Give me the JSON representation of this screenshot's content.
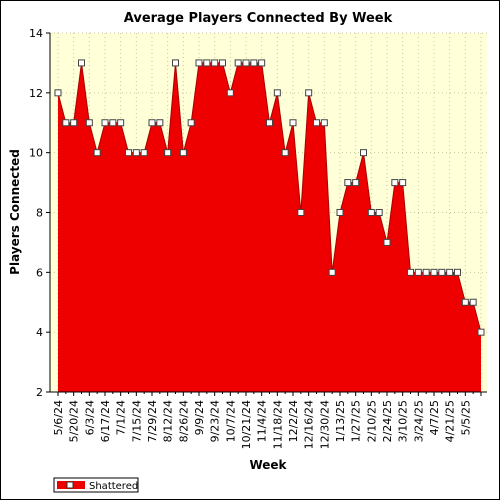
{
  "chart_data": {
    "type": "area",
    "title": "Average Players Connected By Week",
    "xlabel": "Week",
    "ylabel": "Players Connected",
    "ylim": [
      2,
      14
    ],
    "yticks": [
      2,
      4,
      6,
      8,
      10,
      12,
      14
    ],
    "grid": true,
    "legend_position": "bottom-left",
    "x_tick_labels": [
      "5/6/24",
      "5/20/24",
      "6/3/24",
      "6/17/24",
      "7/1/24",
      "7/15/24",
      "7/29/24",
      "8/12/24",
      "8/26/24",
      "9/9/24",
      "9/23/24",
      "10/7/24",
      "10/21/24",
      "11/4/24",
      "11/18/24",
      "12/2/24",
      "12/16/24",
      "12/30/24",
      "1/13/25",
      "1/27/25",
      "2/10/25",
      "2/24/25",
      "3/10/25",
      "3/24/25",
      "4/7/25",
      "4/21/25",
      "5/5/25"
    ],
    "series": [
      {
        "name": "Shattered",
        "color": "#ee0000",
        "values": [
          12,
          11,
          11,
          13,
          11,
          10,
          11,
          11,
          11,
          10,
          10,
          10,
          11,
          11,
          10,
          13,
          10,
          11,
          13,
          13,
          13,
          13,
          12,
          13,
          13,
          13,
          13,
          11,
          12,
          10,
          11,
          8,
          12,
          11,
          11,
          6,
          8,
          9,
          9,
          10,
          8,
          8,
          7,
          9,
          9,
          6,
          6,
          6,
          6,
          6,
          6,
          6,
          5,
          5,
          4
        ]
      }
    ],
    "plot_background": "#ffffd8",
    "grid_color": "#c8c8a0"
  }
}
